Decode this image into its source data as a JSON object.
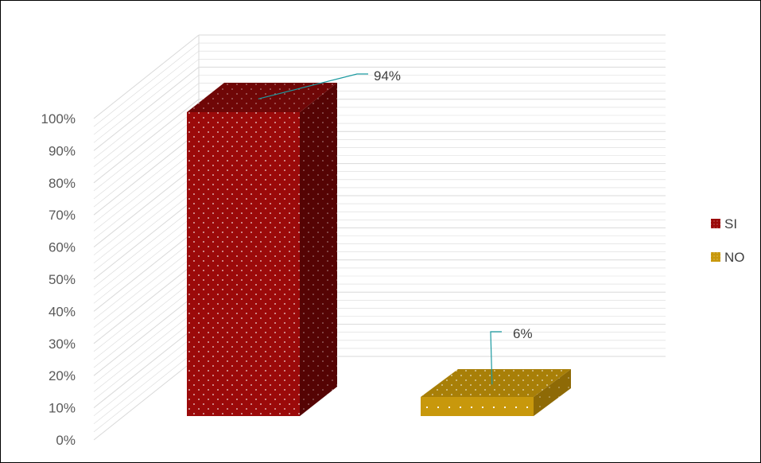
{
  "chart_data": {
    "type": "bar",
    "categories": [
      "SI",
      "NO"
    ],
    "values": [
      94,
      6
    ],
    "data_labels": [
      "94%",
      "6%"
    ],
    "ylim": [
      0,
      100
    ],
    "yticks": [
      0,
      10,
      20,
      30,
      40,
      50,
      60,
      70,
      80,
      90,
      100
    ],
    "ytick_labels": [
      "0%",
      "10%",
      "20%",
      "30%",
      "40%",
      "50%",
      "60%",
      "70%",
      "80%",
      "90%",
      "100%"
    ],
    "grid": true,
    "three_d": true,
    "legend": {
      "position": "right",
      "entries": [
        {
          "label": "SI",
          "color": "#9b0a0a"
        },
        {
          "label": "NO",
          "color": "#c8980c"
        }
      ]
    },
    "colors": {
      "si_front": "#9b0a0a",
      "si_top": "#6f0707",
      "si_side": "#550404",
      "no_front": "#c8980c",
      "no_top": "#a87f08",
      "no_side": "#8e6a06",
      "leader_line": "#1b9aa0",
      "grid": "#d9d9d9"
    },
    "title": "",
    "xlabel": "",
    "ylabel": ""
  }
}
